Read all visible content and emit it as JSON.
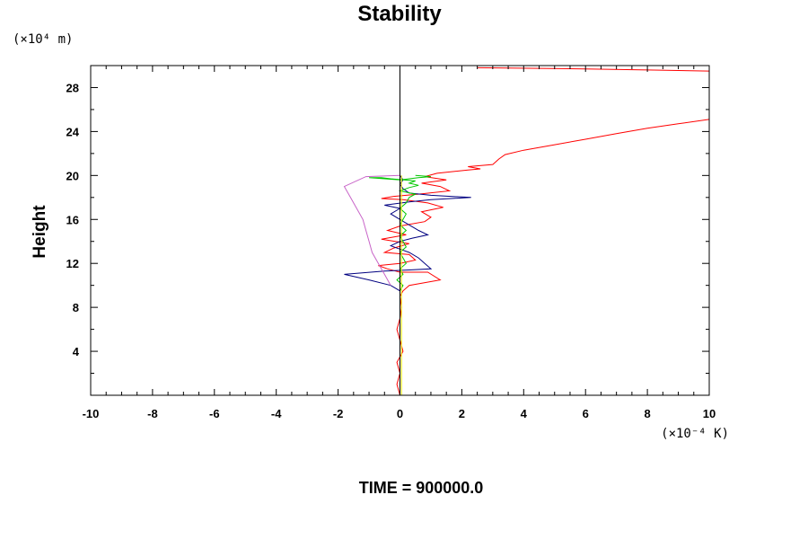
{
  "chart_data": {
    "type": "line",
    "title": "Stability",
    "ylabel": "Height",
    "xlabel": "",
    "y_unit_label": "(×10⁴ m)",
    "x_unit_label": "(×10⁻⁴ K)",
    "footer": "TIME = 900000.0",
    "xlim": [
      -10,
      10
    ],
    "ylim": [
      0,
      30
    ],
    "x_ticks": [
      -10,
      -8,
      -6,
      -4,
      -2,
      0,
      2,
      4,
      6,
      8,
      10
    ],
    "y_ticks": [
      4,
      8,
      12,
      16,
      20,
      24,
      28
    ],
    "grid": false,
    "series": [
      {
        "color": "#ff0000",
        "points": [
          [
            0,
            0
          ],
          [
            -0.1,
            1
          ],
          [
            0,
            2
          ],
          [
            -0.1,
            3
          ],
          [
            0.1,
            4
          ],
          [
            0,
            5
          ],
          [
            -0.1,
            6
          ],
          [
            0,
            7
          ],
          [
            0.05,
            8
          ],
          [
            0,
            9
          ],
          [
            0.1,
            9.5
          ],
          [
            0.3,
            10
          ],
          [
            1.3,
            10.5
          ],
          [
            0.9,
            11.2
          ],
          [
            0,
            11.2
          ],
          [
            -0.4,
            11.5
          ],
          [
            -0.7,
            11.8
          ],
          [
            0,
            12
          ],
          [
            0.5,
            12.3
          ],
          [
            0.3,
            12.8
          ],
          [
            -0.5,
            13
          ],
          [
            -0.2,
            13.4
          ],
          [
            0.3,
            13.8
          ],
          [
            -0.6,
            14.2
          ],
          [
            0.2,
            14.6
          ],
          [
            -0.4,
            15
          ],
          [
            0,
            15.4
          ],
          [
            0.8,
            15.8
          ],
          [
            1,
            16.2
          ],
          [
            0.7,
            16.7
          ],
          [
            1.4,
            17.1
          ],
          [
            0.9,
            17.5
          ],
          [
            0.1,
            17.8
          ],
          [
            -0.6,
            17.9
          ],
          [
            -0.2,
            18.1
          ],
          [
            0.6,
            18.3
          ],
          [
            1.6,
            18.6
          ],
          [
            1.3,
            19
          ],
          [
            0.7,
            19.3
          ],
          [
            1.5,
            19.6
          ],
          [
            0.8,
            19.9
          ],
          [
            1.2,
            20.2
          ],
          [
            2.2,
            20.5
          ],
          [
            2.6,
            20.6
          ],
          [
            2.2,
            20.8
          ],
          [
            3.0,
            21.0
          ],
          [
            3.2,
            21.5
          ],
          [
            3.4,
            21.9
          ],
          [
            4.0,
            22.3
          ],
          [
            5.0,
            22.8
          ],
          [
            6.0,
            23.3
          ],
          [
            7.0,
            23.8
          ],
          [
            8.0,
            24.3
          ],
          [
            9.0,
            24.7
          ],
          [
            10,
            25.1
          ]
        ]
      },
      {
        "color": "#ff0000",
        "points": [
          [
            2.5,
            29.8
          ],
          [
            6,
            29.7
          ],
          [
            8,
            29.6
          ],
          [
            10,
            29.5
          ]
        ]
      },
      {
        "color": "#000080",
        "points": [
          [
            0,
            0
          ],
          [
            0,
            2
          ],
          [
            0,
            4
          ],
          [
            0,
            6
          ],
          [
            0,
            8
          ],
          [
            0,
            9.5
          ],
          [
            -0.3,
            10
          ],
          [
            -1,
            10.5
          ],
          [
            -1.8,
            11
          ],
          [
            -0.5,
            11.3
          ],
          [
            0.3,
            11.4
          ],
          [
            1,
            11.5
          ],
          [
            0.8,
            12
          ],
          [
            0.6,
            12.5
          ],
          [
            0.3,
            13
          ],
          [
            0,
            13.3
          ],
          [
            -0.3,
            13.6
          ],
          [
            0,
            14
          ],
          [
            0.4,
            14.3
          ],
          [
            0.9,
            14.6
          ],
          [
            0.6,
            15
          ],
          [
            0.3,
            15.5
          ],
          [
            0,
            16
          ],
          [
            -0.3,
            16.5
          ],
          [
            0,
            17
          ],
          [
            -0.5,
            17.3
          ],
          [
            0.3,
            17.6
          ],
          [
            1,
            17.8
          ],
          [
            2.3,
            18
          ],
          [
            1,
            18.2
          ],
          [
            0.3,
            18.4
          ],
          [
            0.1,
            18.8
          ],
          [
            0,
            19.2
          ],
          [
            0.1,
            19.6
          ],
          [
            0,
            20
          ]
        ]
      },
      {
        "color": "#00c800",
        "points": [
          [
            0,
            9.5
          ],
          [
            0.1,
            10
          ],
          [
            -0.1,
            10.5
          ],
          [
            0.1,
            11
          ],
          [
            0,
            11.5
          ],
          [
            0.2,
            12
          ],
          [
            0.1,
            12.5
          ],
          [
            0,
            13
          ],
          [
            0.2,
            13.5
          ],
          [
            0.1,
            14
          ],
          [
            0,
            14.5
          ],
          [
            0.2,
            15
          ],
          [
            0,
            15.5
          ],
          [
            0.1,
            16
          ],
          [
            0.2,
            16.5
          ],
          [
            0,
            17
          ],
          [
            0.2,
            17.5
          ],
          [
            0.3,
            18
          ],
          [
            0.5,
            18.3
          ],
          [
            0,
            18.6
          ],
          [
            0.3,
            18.9
          ],
          [
            0.6,
            19.1
          ],
          [
            0.3,
            19.3
          ],
          [
            0.5,
            19.5
          ],
          [
            -0.3,
            19.7
          ],
          [
            -0.6,
            19.8
          ],
          [
            -1,
            19.8
          ],
          [
            0,
            19.6
          ],
          [
            0.6,
            19.8
          ],
          [
            1,
            19.9
          ],
          [
            0.5,
            20
          ]
        ]
      },
      {
        "color": "#c864c8",
        "points": [
          [
            -0.3,
            10
          ],
          [
            -0.5,
            11
          ],
          [
            -0.7,
            12
          ],
          [
            -0.9,
            13
          ],
          [
            -1,
            14
          ],
          [
            -1.1,
            15
          ],
          [
            -1.2,
            16
          ],
          [
            -1.4,
            17
          ],
          [
            -1.6,
            18
          ],
          [
            -1.8,
            19
          ],
          [
            -1.1,
            19.9
          ],
          [
            0,
            20
          ]
        ]
      },
      {
        "color": "#e6e600",
        "points": [
          [
            0.05,
            0
          ],
          [
            0.05,
            2
          ],
          [
            0.05,
            4
          ],
          [
            0.05,
            6
          ],
          [
            0.05,
            8
          ],
          [
            0.05,
            10
          ],
          [
            0.05,
            12
          ],
          [
            0.05,
            14
          ],
          [
            0.05,
            16
          ],
          [
            0.05,
            18
          ],
          [
            0.05,
            20
          ]
        ]
      },
      {
        "color": "#000000",
        "points": [
          [
            0,
            0
          ],
          [
            0,
            30
          ]
        ]
      }
    ]
  }
}
